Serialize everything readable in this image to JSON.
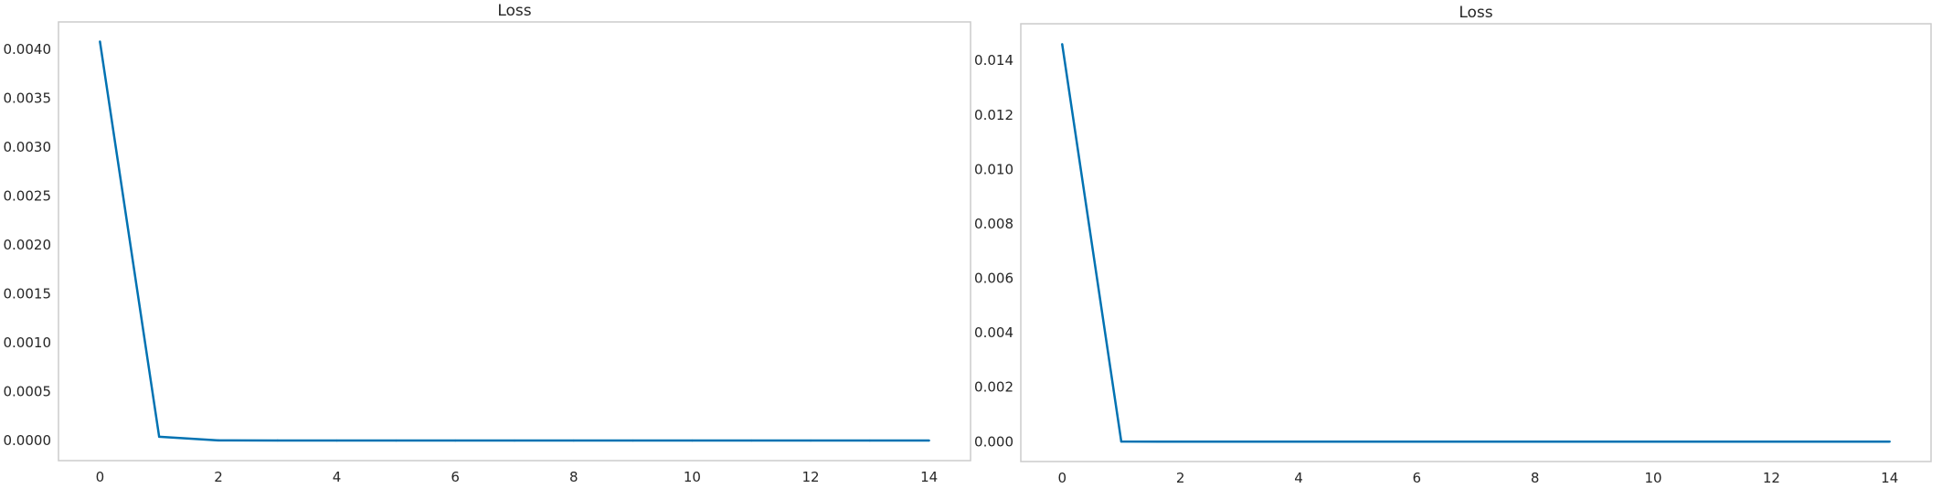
{
  "colors": {
    "line": "#0072b2",
    "grid": "#cccccc",
    "frame": "#cccccc",
    "background": "#ffffff",
    "text": "#262626"
  },
  "chart_data": [
    {
      "type": "line",
      "title": "Loss",
      "xlabel": "",
      "ylabel": "",
      "grid": true,
      "xlim": [
        -0.7,
        14.7
      ],
      "ylim": [
        -0.000204,
        0.00428
      ],
      "xticks": [
        0,
        2,
        4,
        6,
        8,
        10,
        12,
        14
      ],
      "xtick_labels": [
        "0",
        "2",
        "4",
        "6",
        "8",
        "10",
        "12",
        "14"
      ],
      "yticks": [
        0,
        0.0005,
        0.001,
        0.0015,
        0.002,
        0.0025,
        0.003,
        0.0035,
        0.004
      ],
      "ytick_labels": [
        "0.0000",
        "0.0005",
        "0.0010",
        "0.0015",
        "0.0020",
        "0.0025",
        "0.0030",
        "0.0035",
        "0.0040"
      ],
      "series": [
        {
          "x": [
            0,
            1,
            2,
            3,
            4,
            5,
            6,
            7,
            8,
            9,
            10,
            11,
            12,
            13,
            14
          ],
          "y": [
            0.00408,
            4e-05,
            3e-06,
            2e-06,
            1e-06,
            1e-06,
            1e-06,
            1e-06,
            1e-06,
            1e-06,
            1e-06,
            1e-06,
            1e-06,
            1e-06,
            1e-06
          ]
        }
      ]
    },
    {
      "type": "line",
      "title": "Loss",
      "xlabel": "",
      "ylabel": "",
      "grid": true,
      "xlim": [
        -0.7,
        14.7
      ],
      "ylim": [
        -0.00073,
        0.01535
      ],
      "xticks": [
        0,
        2,
        4,
        6,
        8,
        10,
        12,
        14
      ],
      "xtick_labels": [
        "0",
        "2",
        "4",
        "6",
        "8",
        "10",
        "12",
        "14"
      ],
      "yticks": [
        0,
        0.002,
        0.004,
        0.006,
        0.008,
        0.01,
        0.012,
        0.014
      ],
      "ytick_labels": [
        "0.000",
        "0.002",
        "0.004",
        "0.006",
        "0.008",
        "0.010",
        "0.012",
        "0.014"
      ],
      "series": [
        {
          "x": [
            0,
            1,
            2,
            3,
            4,
            5,
            6,
            7,
            8,
            9,
            10,
            11,
            12,
            13,
            14
          ],
          "y": [
            0.0146,
            3e-06,
            1e-06,
            1e-06,
            1e-06,
            1e-06,
            1e-06,
            1e-06,
            1e-06,
            1e-06,
            1e-06,
            1e-06,
            1e-06,
            1e-06,
            1e-06
          ]
        }
      ]
    }
  ]
}
